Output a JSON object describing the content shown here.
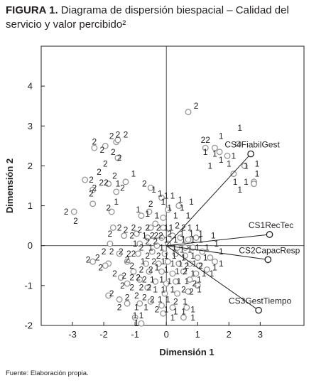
{
  "figure": {
    "label": "FIGURA 1.",
    "title": "Diagrama de dispersión biespacial – Calidad del servicio y valor percibido²",
    "source": "Fuente: Elaboración propia."
  },
  "chart_data": {
    "type": "scatter",
    "title": "FIGURA 1. Diagrama de dispersión biespacial – Calidad del servicio y valor percibido²",
    "xlabel": "Dimensión 1",
    "ylabel": "Dimensión 2",
    "xlim": [
      -4,
      4.4
    ],
    "ylim": [
      -2,
      5
    ],
    "xticks": [
      -3,
      -2,
      -1,
      0,
      1,
      2,
      3
    ],
    "yticks": [
      -2,
      -1,
      0,
      1,
      2,
      3,
      4
    ],
    "reference_lines": {
      "x": 0,
      "y": 0
    },
    "colors": {
      "axis": "#231f20",
      "text": "#231f20",
      "points": "#939598",
      "vector": "#231f20"
    },
    "vectors": [
      {
        "name": "CS4FiabilGest",
        "x": 2.7,
        "y": 2.3
      },
      {
        "name": "CS1RecTec",
        "x": 3.3,
        "y": 0.28
      },
      {
        "name": "CS2CapacResp",
        "x": 3.25,
        "y": -0.35
      },
      {
        "name": "CS3GestTiempo",
        "x": 2.95,
        "y": -1.62
      }
    ],
    "point_labels": [
      {
        "x": -3.2,
        "y": 0.85,
        "label": "2"
      },
      {
        "x": -2.9,
        "y": 0.62,
        "label": "2"
      },
      {
        "x": -2.4,
        "y": 1.65,
        "label": "2"
      },
      {
        "x": -2.4,
        "y": 1.3,
        "label": "2"
      },
      {
        "x": -2.0,
        "y": 1.58,
        "label": "22"
      },
      {
        "x": -2.3,
        "y": 1.45,
        "label": "2"
      },
      {
        "x": -2.15,
        "y": 1.85,
        "label": "2"
      },
      {
        "x": -1.95,
        "y": 2.05,
        "label": "2"
      },
      {
        "x": -1.65,
        "y": 1.75,
        "label": "2"
      },
      {
        "x": -1.55,
        "y": 1.55,
        "label": "1"
      },
      {
        "x": -1.4,
        "y": 1.45,
        "label": "2"
      },
      {
        "x": -2.05,
        "y": 2.4,
        "label": "2"
      },
      {
        "x": -1.7,
        "y": 2.35,
        "label": "2"
      },
      {
        "x": -2.3,
        "y": 2.6,
        "label": "2"
      },
      {
        "x": -1.5,
        "y": 2.2,
        "label": "2"
      },
      {
        "x": -1.75,
        "y": 2.75,
        "label": "2"
      },
      {
        "x": -1.55,
        "y": 2.78,
        "label": "2"
      },
      {
        "x": -1.3,
        "y": 2.78,
        "label": "2"
      },
      {
        "x": -1.85,
        "y": 0.95,
        "label": "2"
      },
      {
        "x": -1.6,
        "y": 1.1,
        "label": "1"
      },
      {
        "x": -1.05,
        "y": 1.8,
        "label": "1"
      },
      {
        "x": -0.7,
        "y": 1.55,
        "label": "2"
      },
      {
        "x": -0.4,
        "y": 1.4,
        "label": "1"
      },
      {
        "x": -0.2,
        "y": 1.3,
        "label": "1"
      },
      {
        "x": 0.0,
        "y": 1.25,
        "label": "1"
      },
      {
        "x": 0.2,
        "y": 1.25,
        "label": "1"
      },
      {
        "x": 0.45,
        "y": 1.15,
        "label": "1"
      },
      {
        "x": -0.5,
        "y": 1.05,
        "label": "2"
      },
      {
        "x": -0.1,
        "y": 1.1,
        "label": "1"
      },
      {
        "x": 0.1,
        "y": 0.95,
        "label": "1"
      },
      {
        "x": 0.5,
        "y": 0.95,
        "label": "1"
      },
      {
        "x": 0.8,
        "y": 1.1,
        "label": "1"
      },
      {
        "x": -0.9,
        "y": 0.9,
        "label": "1"
      },
      {
        "x": -0.6,
        "y": 0.8,
        "label": "1"
      },
      {
        "x": -0.3,
        "y": 0.75,
        "label": "1"
      },
      {
        "x": 0.3,
        "y": 0.75,
        "label": "1"
      },
      {
        "x": 0.7,
        "y": 0.75,
        "label": "1"
      },
      {
        "x": -1.5,
        "y": 0.45,
        "label": "2"
      },
      {
        "x": -1.3,
        "y": 0.4,
        "label": "2"
      },
      {
        "x": -1.05,
        "y": 0.45,
        "label": "2"
      },
      {
        "x": -0.85,
        "y": 0.4,
        "label": "2"
      },
      {
        "x": -0.6,
        "y": 0.45,
        "label": "2"
      },
      {
        "x": -0.25,
        "y": 0.45,
        "label": "2"
      },
      {
        "x": 0.0,
        "y": 0.45,
        "label": "1"
      },
      {
        "x": 0.15,
        "y": 0.45,
        "label": "1"
      },
      {
        "x": 0.35,
        "y": 0.5,
        "label": "2"
      },
      {
        "x": 0.55,
        "y": 0.45,
        "label": "2"
      },
      {
        "x": 0.75,
        "y": 0.45,
        "label": "1"
      },
      {
        "x": 1.0,
        "y": 0.45,
        "label": "1"
      },
      {
        "x": -1.8,
        "y": 0.3,
        "label": "2"
      },
      {
        "x": -1.1,
        "y": 0.25,
        "label": "2"
      },
      {
        "x": -0.7,
        "y": 0.25,
        "label": "1"
      },
      {
        "x": -0.45,
        "y": 0.25,
        "label": "2"
      },
      {
        "x": -0.25,
        "y": 0.25,
        "label": "22"
      },
      {
        "x": 0.1,
        "y": 0.3,
        "label": "2"
      },
      {
        "x": 0.5,
        "y": 0.3,
        "label": "1"
      },
      {
        "x": 0.8,
        "y": 0.3,
        "label": "1"
      },
      {
        "x": 1.1,
        "y": 0.3,
        "label": "1"
      },
      {
        "x": 1.5,
        "y": 0.25,
        "label": "1"
      },
      {
        "x": -1.0,
        "y": 0.05,
        "label": "1"
      },
      {
        "x": -0.6,
        "y": 0.1,
        "label": "2"
      },
      {
        "x": -0.35,
        "y": 0.1,
        "label": "2"
      },
      {
        "x": 0.0,
        "y": 0.15,
        "label": "1"
      },
      {
        "x": 0.3,
        "y": 0.15,
        "label": "1"
      },
      {
        "x": 0.55,
        "y": 0.15,
        "label": "1"
      },
      {
        "x": 0.85,
        "y": 0.15,
        "label": "1"
      },
      {
        "x": 1.1,
        "y": 0.15,
        "label": "1"
      },
      {
        "x": 1.6,
        "y": 0.05,
        "label": "1"
      },
      {
        "x": -0.8,
        "y": -0.05,
        "label": "2"
      },
      {
        "x": -0.5,
        "y": -0.05,
        "label": "1"
      },
      {
        "x": -0.15,
        "y": -0.05,
        "label": "1"
      },
      {
        "x": 0.25,
        "y": -0.05,
        "label": "1"
      },
      {
        "x": 0.5,
        "y": -0.1,
        "label": "1"
      },
      {
        "x": 0.75,
        "y": -0.1,
        "label": "1"
      },
      {
        "x": 1.0,
        "y": -0.05,
        "label": "1"
      },
      {
        "x": 1.3,
        "y": -0.05,
        "label": "1"
      },
      {
        "x": 1.75,
        "y": -0.15,
        "label": "1"
      },
      {
        "x": -2.0,
        "y": -0.15,
        "label": "2"
      },
      {
        "x": -1.75,
        "y": -0.15,
        "label": "2"
      },
      {
        "x": -1.45,
        "y": -0.15,
        "label": "2"
      },
      {
        "x": -1.2,
        "y": -0.2,
        "label": "2"
      },
      {
        "x": -1.05,
        "y": -0.2,
        "label": "2"
      },
      {
        "x": -0.6,
        "y": -0.25,
        "label": "2"
      },
      {
        "x": -0.25,
        "y": -0.25,
        "label": "2"
      },
      {
        "x": 0.0,
        "y": -0.25,
        "label": "1"
      },
      {
        "x": 0.25,
        "y": -0.25,
        "label": "1"
      },
      {
        "x": 0.55,
        "y": -0.3,
        "label": "1"
      },
      {
        "x": 0.85,
        "y": -0.25,
        "label": "1"
      },
      {
        "x": 1.25,
        "y": -0.3,
        "label": "1"
      },
      {
        "x": -2.2,
        "y": -0.3,
        "label": "2"
      },
      {
        "x": -2.5,
        "y": -0.35,
        "label": "2"
      },
      {
        "x": -1.25,
        "y": -0.35,
        "label": "2"
      },
      {
        "x": -0.75,
        "y": -0.4,
        "label": "1"
      },
      {
        "x": -0.4,
        "y": -0.4,
        "label": "2"
      },
      {
        "x": -0.1,
        "y": -0.4,
        "label": "1"
      },
      {
        "x": 0.2,
        "y": -0.45,
        "label": "1"
      },
      {
        "x": 0.45,
        "y": -0.45,
        "label": "1"
      },
      {
        "x": 0.65,
        "y": -0.5,
        "label": "2"
      },
      {
        "x": 0.9,
        "y": -0.45,
        "label": "1"
      },
      {
        "x": 1.1,
        "y": -0.5,
        "label": "2"
      },
      {
        "x": 1.55,
        "y": -0.55,
        "label": "1"
      },
      {
        "x": 1.75,
        "y": -0.45,
        "label": "1"
      },
      {
        "x": -2.1,
        "y": -0.55,
        "label": "2"
      },
      {
        "x": -1.1,
        "y": -0.5,
        "label": "2"
      },
      {
        "x": -0.8,
        "y": -0.6,
        "label": "2"
      },
      {
        "x": -0.5,
        "y": -0.6,
        "label": "2"
      },
      {
        "x": -0.3,
        "y": -0.55,
        "label": "1"
      },
      {
        "x": 0.0,
        "y": -0.6,
        "label": "1"
      },
      {
        "x": 0.35,
        "y": -0.65,
        "label": "1"
      },
      {
        "x": 0.6,
        "y": -0.65,
        "label": "2"
      },
      {
        "x": 0.85,
        "y": -0.7,
        "label": "1"
      },
      {
        "x": 1.2,
        "y": -0.7,
        "label": "1"
      },
      {
        "x": 1.45,
        "y": -0.7,
        "label": "1"
      },
      {
        "x": -1.65,
        "y": -0.7,
        "label": "2"
      },
      {
        "x": -1.35,
        "y": -0.75,
        "label": "2"
      },
      {
        "x": -1.1,
        "y": -0.8,
        "label": "2"
      },
      {
        "x": -0.9,
        "y": -0.8,
        "label": "2"
      },
      {
        "x": -0.7,
        "y": -0.85,
        "label": "2"
      },
      {
        "x": -0.45,
        "y": -0.85,
        "label": "1"
      },
      {
        "x": -0.15,
        "y": -0.85,
        "label": "1"
      },
      {
        "x": 0.1,
        "y": -0.9,
        "label": "1"
      },
      {
        "x": 0.4,
        "y": -0.9,
        "label": "1"
      },
      {
        "x": 0.65,
        "y": -0.9,
        "label": "1"
      },
      {
        "x": 0.9,
        "y": -0.95,
        "label": "2"
      },
      {
        "x": 1.05,
        "y": -0.85,
        "label": "1"
      },
      {
        "x": -1.4,
        "y": -1.0,
        "label": "2"
      },
      {
        "x": -1.1,
        "y": -1.05,
        "label": "2"
      },
      {
        "x": -0.8,
        "y": -1.05,
        "label": "2"
      },
      {
        "x": -0.55,
        "y": -1.05,
        "label": "2"
      },
      {
        "x": -0.35,
        "y": -1.1,
        "label": "1"
      },
      {
        "x": -0.1,
        "y": -1.1,
        "label": "1"
      },
      {
        "x": 0.2,
        "y": -1.1,
        "label": "1"
      },
      {
        "x": 0.55,
        "y": -1.1,
        "label": "2"
      },
      {
        "x": 0.8,
        "y": -1.15,
        "label": "2"
      },
      {
        "x": 1.05,
        "y": -1.1,
        "label": "1"
      },
      {
        "x": -1.75,
        "y": -1.2,
        "label": "2"
      },
      {
        "x": -1.25,
        "y": -1.3,
        "label": "2"
      },
      {
        "x": -0.95,
        "y": -1.25,
        "label": "2"
      },
      {
        "x": -0.7,
        "y": -1.3,
        "label": "2"
      },
      {
        "x": -0.45,
        "y": -1.35,
        "label": "2"
      },
      {
        "x": -0.2,
        "y": -1.35,
        "label": "1"
      },
      {
        "x": 0.05,
        "y": -1.35,
        "label": "1"
      },
      {
        "x": 0.3,
        "y": -1.4,
        "label": "2"
      },
      {
        "x": 0.6,
        "y": -1.4,
        "label": "1"
      },
      {
        "x": -1.5,
        "y": -1.55,
        "label": "2"
      },
      {
        "x": -0.95,
        "y": -1.55,
        "label": "1"
      },
      {
        "x": -0.65,
        "y": -1.55,
        "label": "1"
      },
      {
        "x": -0.3,
        "y": -1.6,
        "label": "2"
      },
      {
        "x": 0.0,
        "y": -1.6,
        "label": "1"
      },
      {
        "x": 0.3,
        "y": -1.65,
        "label": "1"
      },
      {
        "x": 0.55,
        "y": -1.65,
        "label": "1"
      },
      {
        "x": 0.85,
        "y": -1.6,
        "label": "1"
      },
      {
        "x": -1.0,
        "y": -1.75,
        "label": "1"
      },
      {
        "x": -0.8,
        "y": -1.75,
        "label": "1"
      },
      {
        "x": 0.2,
        "y": -1.8,
        "label": "1"
      },
      {
        "x": 0.85,
        "y": -1.8,
        "label": "1"
      },
      {
        "x": -0.95,
        "y": -1.95,
        "label": "1"
      },
      {
        "x": 0.95,
        "y": 3.5,
        "label": "2"
      },
      {
        "x": 1.25,
        "y": 2.65,
        "label": "22"
      },
      {
        "x": 1.75,
        "y": 2.75,
        "label": "1"
      },
      {
        "x": 2.35,
        "y": 2.95,
        "label": "1"
      },
      {
        "x": 1.55,
        "y": 2.3,
        "label": "1"
      },
      {
        "x": 1.75,
        "y": 2.15,
        "label": "1"
      },
      {
        "x": 1.25,
        "y": 2.35,
        "label": "1"
      },
      {
        "x": 2.0,
        "y": 2.05,
        "label": "1"
      },
      {
        "x": 1.4,
        "y": 2.0,
        "label": "1"
      },
      {
        "x": 2.15,
        "y": 2.25,
        "label": "1"
      },
      {
        "x": 2.55,
        "y": 2.0,
        "label": "1"
      },
      {
        "x": 2.9,
        "y": 2.05,
        "label": "1"
      },
      {
        "x": 2.9,
        "y": 1.8,
        "label": "1"
      },
      {
        "x": 2.55,
        "y": 1.6,
        "label": "1"
      },
      {
        "x": 2.2,
        "y": 1.6,
        "label": "1"
      },
      {
        "x": 2.35,
        "y": 1.4,
        "label": "1"
      }
    ],
    "circles": [
      {
        "x": -2.95,
        "y": 0.85
      },
      {
        "x": -2.6,
        "y": 1.65
      },
      {
        "x": -2.35,
        "y": 1.4
      },
      {
        "x": -2.35,
        "y": 1.05
      },
      {
        "x": -1.75,
        "y": 0.85
      },
      {
        "x": -1.6,
        "y": 1.35
      },
      {
        "x": -1.3,
        "y": 1.6
      },
      {
        "x": -1.85,
        "y": 1.55
      },
      {
        "x": -2.3,
        "y": 2.45
      },
      {
        "x": -1.95,
        "y": 2.5
      },
      {
        "x": -1.55,
        "y": 2.2
      },
      {
        "x": -1.6,
        "y": 2.6
      },
      {
        "x": -1.55,
        "y": 2.65
      },
      {
        "x": -0.5,
        "y": 1.45
      },
      {
        "x": -0.15,
        "y": 1.2
      },
      {
        "x": 0.4,
        "y": 1.0
      },
      {
        "x": -0.55,
        "y": 0.85
      },
      {
        "x": 0.05,
        "y": 0.9
      },
      {
        "x": -0.8,
        "y": 0.75
      },
      {
        "x": -0.1,
        "y": 0.7
      },
      {
        "x": -0.35,
        "y": 0.55
      },
      {
        "x": -0.5,
        "y": 0.45
      },
      {
        "x": -1.7,
        "y": 0.45
      },
      {
        "x": -1.35,
        "y": 0.25
      },
      {
        "x": -0.95,
        "y": 0.3
      },
      {
        "x": -0.6,
        "y": 0.2
      },
      {
        "x": -0.15,
        "y": 0.2
      },
      {
        "x": 0.2,
        "y": 0.25
      },
      {
        "x": 0.45,
        "y": 0.2
      },
      {
        "x": 0.7,
        "y": 0.15
      },
      {
        "x": 0.95,
        "y": 0.2
      },
      {
        "x": -1.8,
        "y": 0.05
      },
      {
        "x": -0.85,
        "y": 0.05
      },
      {
        "x": -0.3,
        "y": 0.0
      },
      {
        "x": 0.05,
        "y": 0.05
      },
      {
        "x": 0.35,
        "y": -0.05
      },
      {
        "x": 0.6,
        "y": -0.05
      },
      {
        "x": 0.85,
        "y": -0.05
      },
      {
        "x": 1.15,
        "y": -0.15
      },
      {
        "x": -1.5,
        "y": -0.2
      },
      {
        "x": -0.9,
        "y": -0.2
      },
      {
        "x": -0.45,
        "y": -0.15
      },
      {
        "x": -0.05,
        "y": -0.2
      },
      {
        "x": 0.3,
        "y": -0.2
      },
      {
        "x": 0.6,
        "y": -0.25
      },
      {
        "x": 1.0,
        "y": -0.3
      },
      {
        "x": 1.4,
        "y": -0.3
      },
      {
        "x": -2.35,
        "y": -0.4
      },
      {
        "x": -1.85,
        "y": -0.45
      },
      {
        "x": -1.25,
        "y": -0.4
      },
      {
        "x": -0.65,
        "y": -0.45
      },
      {
        "x": -0.25,
        "y": -0.45
      },
      {
        "x": 0.05,
        "y": -0.4
      },
      {
        "x": 0.4,
        "y": -0.45
      },
      {
        "x": 0.75,
        "y": -0.45
      },
      {
        "x": 1.05,
        "y": -0.5
      },
      {
        "x": 1.55,
        "y": -0.4
      },
      {
        "x": -1.95,
        "y": -0.5
      },
      {
        "x": -1.05,
        "y": -0.65
      },
      {
        "x": -0.55,
        "y": -0.65
      },
      {
        "x": -0.15,
        "y": -0.65
      },
      {
        "x": 0.2,
        "y": -0.7
      },
      {
        "x": 0.55,
        "y": -0.65
      },
      {
        "x": 0.95,
        "y": -0.7
      },
      {
        "x": 1.3,
        "y": -0.6
      },
      {
        "x": -1.45,
        "y": -0.8
      },
      {
        "x": -0.85,
        "y": -0.85
      },
      {
        "x": -0.35,
        "y": -0.9
      },
      {
        "x": 0.0,
        "y": -0.95
      },
      {
        "x": 0.3,
        "y": -0.9
      },
      {
        "x": 0.75,
        "y": -0.85
      },
      {
        "x": 1.0,
        "y": -1.0
      },
      {
        "x": -1.25,
        "y": -0.95
      },
      {
        "x": -0.6,
        "y": -1.05
      },
      {
        "x": -0.05,
        "y": -1.2
      },
      {
        "x": 0.35,
        "y": -1.2
      },
      {
        "x": 0.7,
        "y": -1.15
      },
      {
        "x": -1.85,
        "y": -1.25
      },
      {
        "x": -1.5,
        "y": -1.35
      },
      {
        "x": -1.25,
        "y": -1.45
      },
      {
        "x": -0.85,
        "y": -1.45
      },
      {
        "x": -0.5,
        "y": -1.4
      },
      {
        "x": -0.15,
        "y": -1.5
      },
      {
        "x": 0.2,
        "y": -1.55
      },
      {
        "x": 0.65,
        "y": -1.55
      },
      {
        "x": -1.0,
        "y": -1.8
      },
      {
        "x": -0.1,
        "y": -1.7
      },
      {
        "x": 0.55,
        "y": -1.8
      },
      {
        "x": -0.8,
        "y": -1.95
      },
      {
        "x": 0.7,
        "y": 3.35
      },
      {
        "x": 1.7,
        "y": 2.35
      },
      {
        "x": 2.3,
        "y": 2.55
      },
      {
        "x": 1.25,
        "y": 2.45
      },
      {
        "x": 1.55,
        "y": 2.45
      },
      {
        "x": 1.95,
        "y": 2.25
      },
      {
        "x": 2.5,
        "y": 2.0
      },
      {
        "x": 2.15,
        "y": 1.8
      },
      {
        "x": 2.8,
        "y": 1.6
      },
      {
        "x": 2.8,
        "y": 1.55
      },
      {
        "x": -0.1,
        "y": 0.45
      }
    ]
  }
}
